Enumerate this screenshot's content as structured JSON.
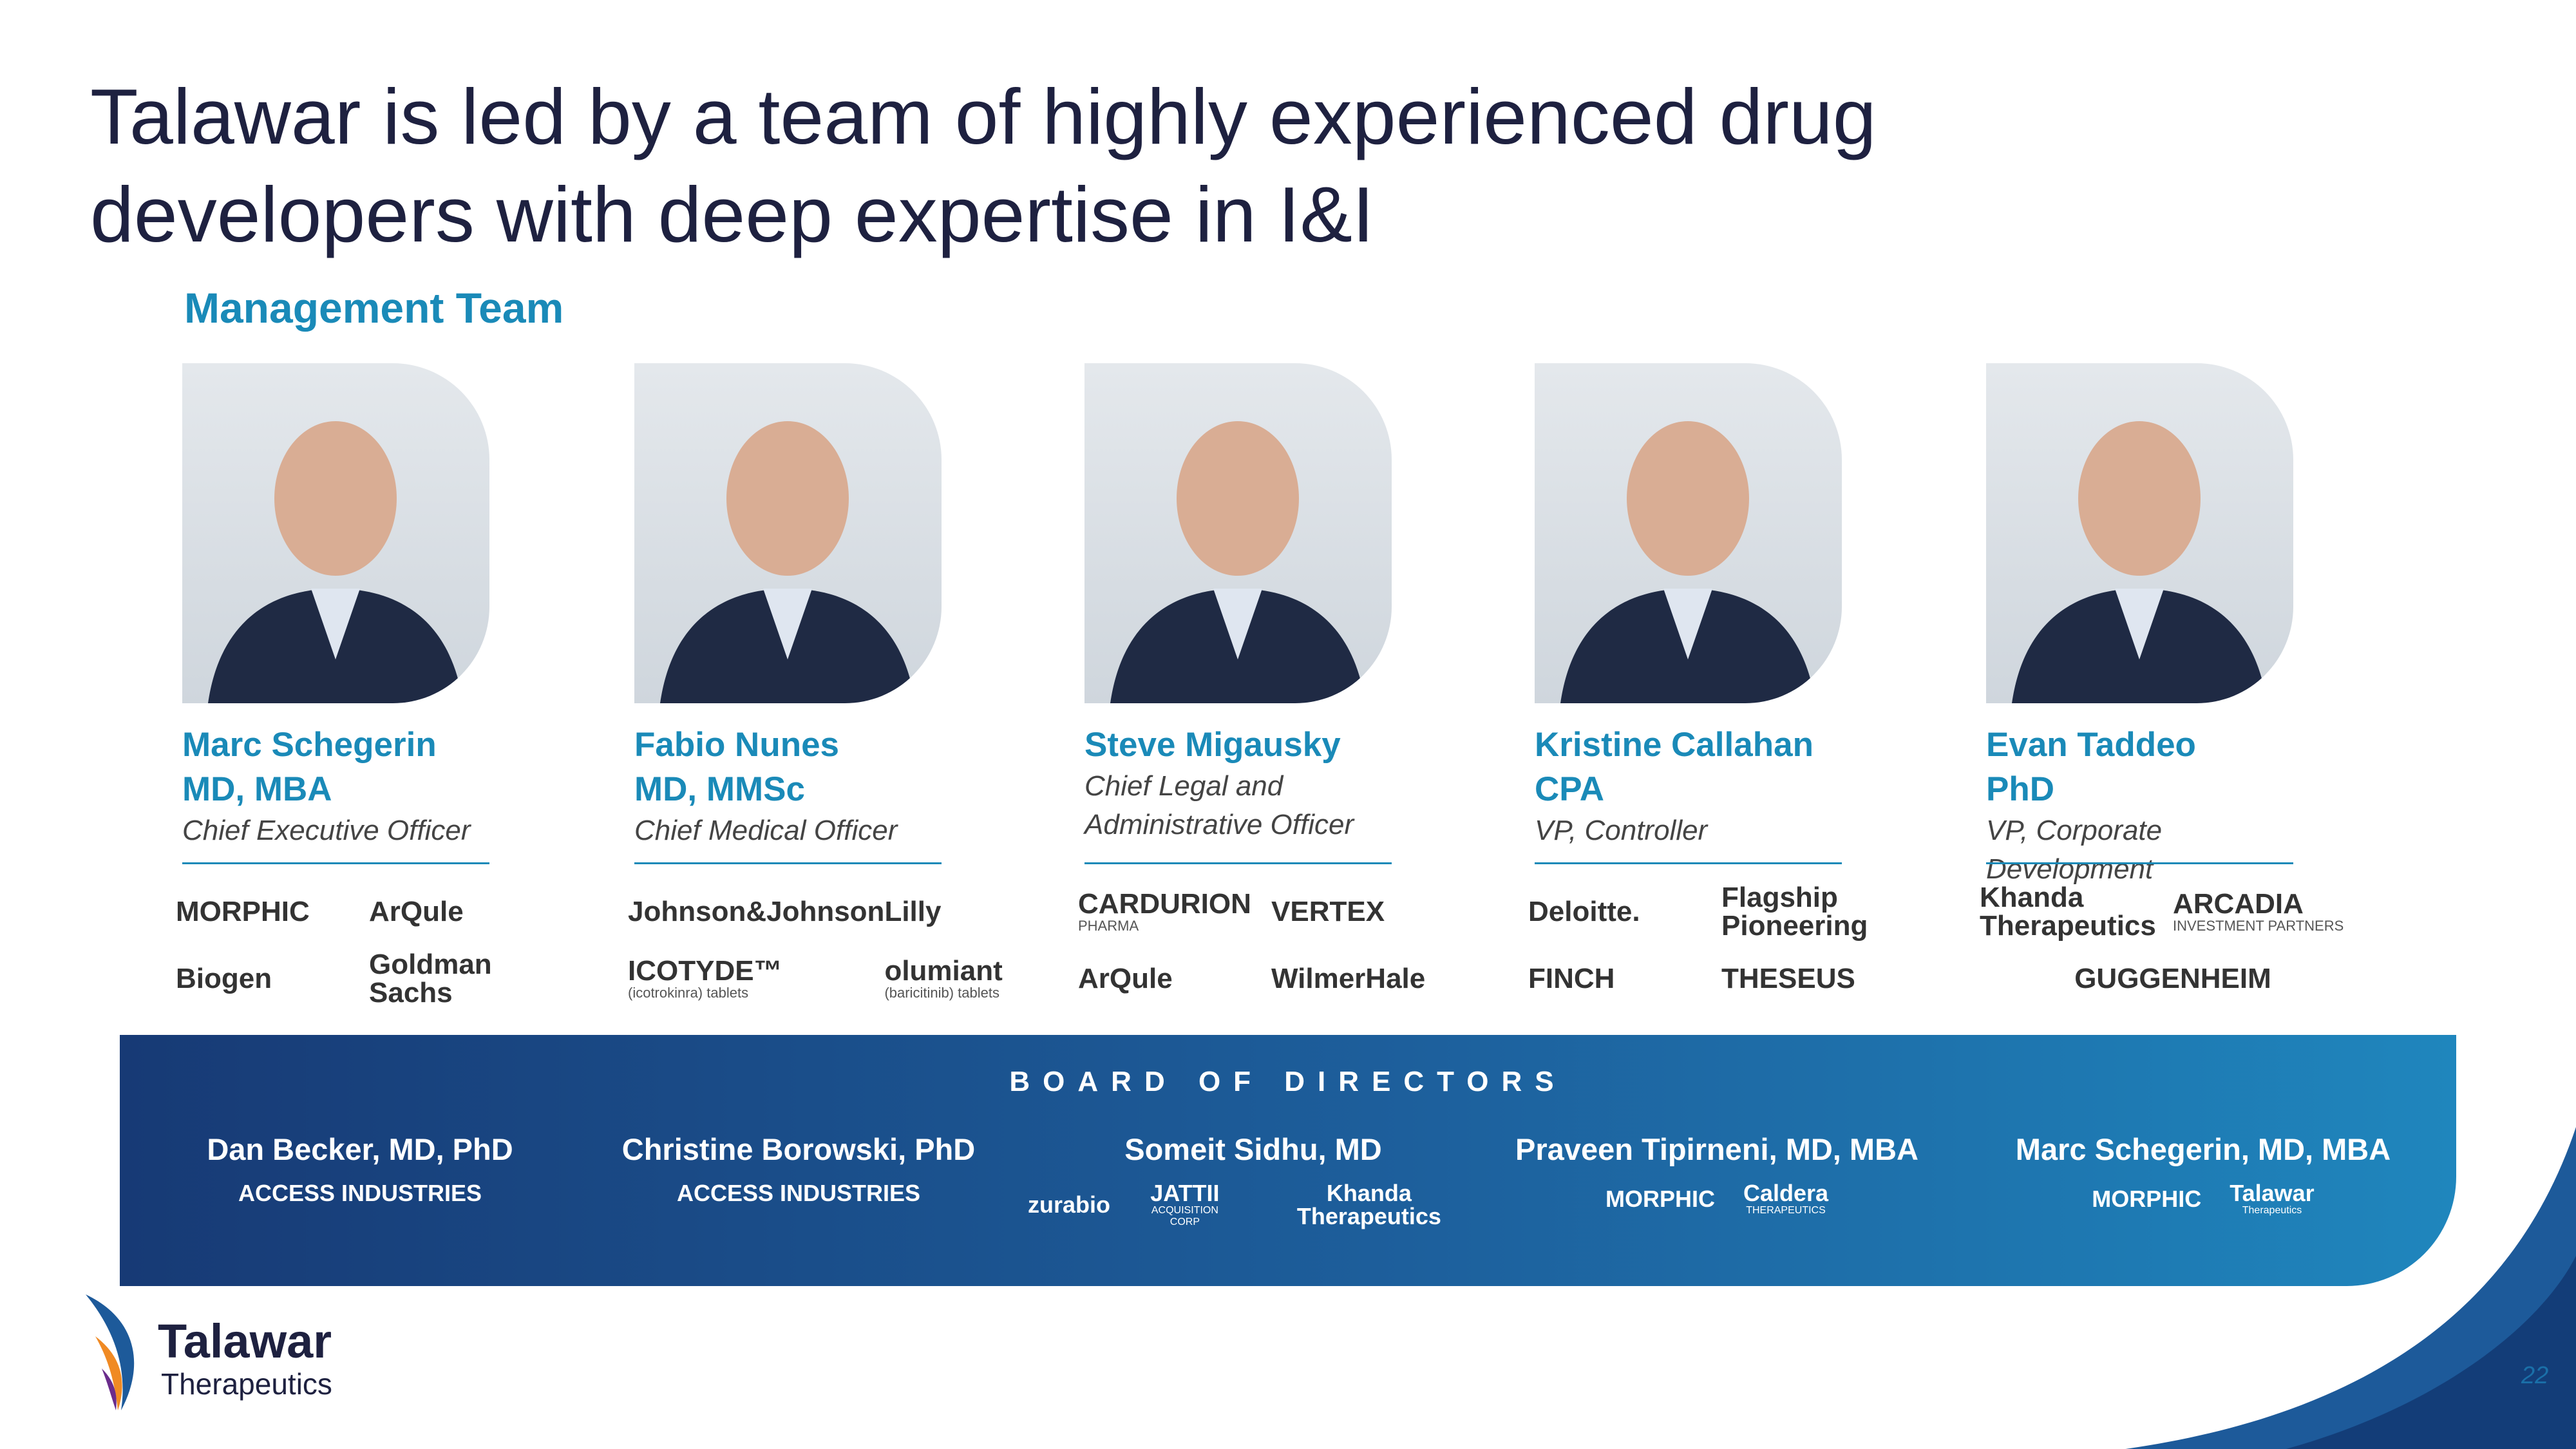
{
  "title": [
    "Talawar is led by a team of highly experienced drug",
    "developers with deep expertise in I&I"
  ],
  "section_title": "Management Team",
  "team": [
    {
      "name": "Marc Schegerin",
      "credentials": "MD, MBA",
      "role": "Chief Executive Officer",
      "logos": [
        {
          "name": "MORPHIC"
        },
        {
          "name": "ArQule"
        },
        {
          "name": "Biogen"
        },
        {
          "name": "Goldman Sachs"
        }
      ]
    },
    {
      "name": "Fabio Nunes",
      "credentials": "MD, MMSc",
      "role": "Chief Medical Officer",
      "logos": [
        {
          "name": "Johnson&Johnson"
        },
        {
          "name": "Lilly"
        },
        {
          "name": "ICOTYDE™",
          "sub": "(icotrokinra) tablets"
        },
        {
          "name": "olumiant",
          "sub": "(baricitinib) tablets"
        }
      ]
    },
    {
      "name": "Steve Migausky",
      "credentials": null,
      "role": "Chief Legal and Administrative Officer",
      "logos": [
        {
          "name": "CARDURION",
          "sub": "PHARMA"
        },
        {
          "name": "VERTEX"
        },
        {
          "name": "ArQule"
        },
        {
          "name": "WilmerHale"
        }
      ]
    },
    {
      "name": "Kristine Callahan",
      "credentials": "CPA",
      "role": "VP, Controller",
      "logos": [
        {
          "name": "Deloitte."
        },
        {
          "name": "Flagship Pioneering"
        },
        {
          "name": "FINCH"
        },
        {
          "name": "THESEUS"
        }
      ]
    },
    {
      "name": "Evan Taddeo",
      "credentials": "PhD",
      "role": "VP, Corporate Development",
      "logos": [
        {
          "name": "Khanda Therapeutics"
        },
        {
          "name": "ARCADIA",
          "sub": "INVESTMENT PARTNERS"
        },
        {
          "name": "GUGGENHEIM"
        }
      ]
    }
  ],
  "board": {
    "heading": "BOARD OF DIRECTORS",
    "members": [
      {
        "name": "Dan Becker, MD, PhD",
        "logos": [
          {
            "name": "ACCESS INDUSTRIES"
          }
        ]
      },
      {
        "name": "Christine Borowski, PhD",
        "logos": [
          {
            "name": "ACCESS INDUSTRIES"
          }
        ]
      },
      {
        "name": "Someit Sidhu, MD",
        "logos": [
          {
            "name": "zurabio"
          },
          {
            "name": "JATTII",
            "sub": "ACQUISITION CORP"
          },
          {
            "name": "Khanda Therapeutics"
          }
        ]
      },
      {
        "name": "Praveen Tipirneni, MD, MBA",
        "logos": [
          {
            "name": "MORPHIC"
          },
          {
            "name": "Caldera",
            "sub": "THERAPEUTICS"
          }
        ]
      },
      {
        "name": "Marc Schegerin, MD, MBA",
        "logos": [
          {
            "name": "MORPHIC"
          },
          {
            "name": "Talawar",
            "sub": "Therapeutics"
          }
        ]
      }
    ]
  },
  "footer": {
    "logo_name": "Talawar",
    "logo_sub": "Therapeutics",
    "page_number": 22
  }
}
